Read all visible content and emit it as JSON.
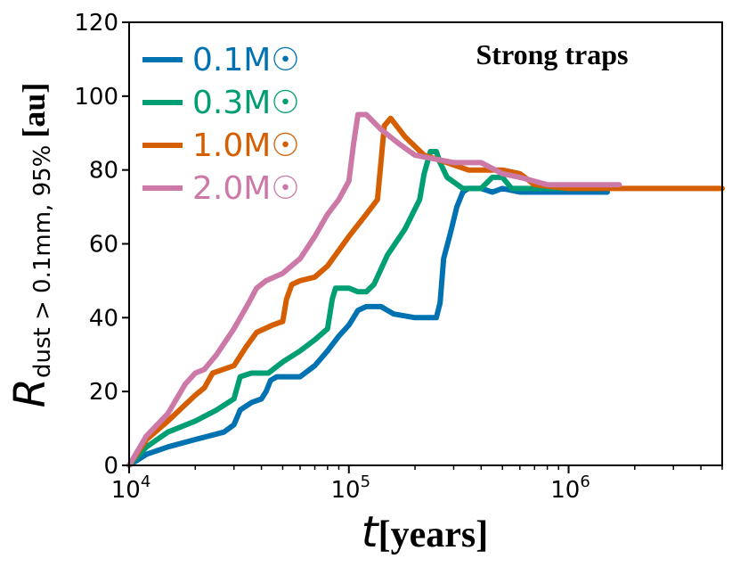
{
  "chart_data": {
    "type": "line",
    "annotation": "Strong traps",
    "xlabel": {
      "symbol": "t",
      "unit": "[years]"
    },
    "ylabel": {
      "symbol": "R",
      "subscript": "dust > 0.1mm, 95%",
      "unit": "[au]"
    },
    "xscale": "log",
    "xlim": [
      10000,
      5000000
    ],
    "ylim": [
      0,
      120
    ],
    "xticks": [
      {
        "base": "10",
        "exp": "4",
        "value": 10000
      },
      {
        "base": "10",
        "exp": "5",
        "value": 100000
      },
      {
        "base": "10",
        "exp": "6",
        "value": 1000000
      }
    ],
    "yticks": [
      "0",
      "20",
      "40",
      "60",
      "80",
      "100",
      "120"
    ],
    "legend_position": "top-left",
    "series": [
      {
        "name": "0.1M☉",
        "color": "#0072B2",
        "points": [
          [
            10000,
            0
          ],
          [
            12000,
            3
          ],
          [
            15000,
            5
          ],
          [
            20000,
            7
          ],
          [
            27000,
            9
          ],
          [
            30000,
            11
          ],
          [
            32000,
            15
          ],
          [
            36000,
            17
          ],
          [
            40000,
            18
          ],
          [
            42000,
            20
          ],
          [
            44000,
            23
          ],
          [
            47000,
            24
          ],
          [
            60000,
            24
          ],
          [
            70000,
            27
          ],
          [
            80000,
            31
          ],
          [
            90000,
            35
          ],
          [
            100000,
            38
          ],
          [
            105000,
            40
          ],
          [
            110000,
            42
          ],
          [
            120000,
            43
          ],
          [
            140000,
            43
          ],
          [
            160000,
            41
          ],
          [
            200000,
            40
          ],
          [
            250000,
            40
          ],
          [
            260000,
            44
          ],
          [
            270000,
            56
          ],
          [
            290000,
            63
          ],
          [
            310000,
            70
          ],
          [
            330000,
            74
          ],
          [
            350000,
            75
          ],
          [
            400000,
            75
          ],
          [
            450000,
            74
          ],
          [
            500000,
            75
          ],
          [
            600000,
            74
          ],
          [
            700000,
            74
          ],
          [
            1000000,
            74
          ],
          [
            1500000,
            74
          ]
        ]
      },
      {
        "name": "0.3M☉",
        "color": "#009E73",
        "points": [
          [
            10000,
            0
          ],
          [
            12000,
            5
          ],
          [
            15000,
            9
          ],
          [
            20000,
            12
          ],
          [
            25000,
            15
          ],
          [
            30000,
            18
          ],
          [
            32000,
            24
          ],
          [
            36000,
            25
          ],
          [
            43000,
            25
          ],
          [
            50000,
            28
          ],
          [
            60000,
            31
          ],
          [
            70000,
            34
          ],
          [
            80000,
            37
          ],
          [
            84000,
            45
          ],
          [
            87000,
            48
          ],
          [
            100000,
            48
          ],
          [
            110000,
            47
          ],
          [
            120000,
            47
          ],
          [
            130000,
            49
          ],
          [
            150000,
            57
          ],
          [
            180000,
            64
          ],
          [
            210000,
            72
          ],
          [
            220000,
            79
          ],
          [
            235000,
            85
          ],
          [
            250000,
            85
          ],
          [
            260000,
            82
          ],
          [
            280000,
            78
          ],
          [
            330000,
            75
          ],
          [
            400000,
            75
          ],
          [
            450000,
            78
          ],
          [
            500000,
            78
          ],
          [
            550000,
            75
          ],
          [
            1000000,
            75
          ],
          [
            1200000,
            75
          ]
        ]
      },
      {
        "name": "1.0M☉",
        "color": "#D55E00",
        "points": [
          [
            10000,
            0
          ],
          [
            12000,
            7
          ],
          [
            15000,
            12
          ],
          [
            20000,
            19
          ],
          [
            22000,
            21
          ],
          [
            24000,
            25
          ],
          [
            30000,
            27
          ],
          [
            34000,
            32
          ],
          [
            38000,
            36
          ],
          [
            45000,
            38
          ],
          [
            50000,
            39
          ],
          [
            52000,
            45
          ],
          [
            55000,
            49
          ],
          [
            60000,
            50
          ],
          [
            70000,
            51
          ],
          [
            80000,
            54
          ],
          [
            100000,
            62
          ],
          [
            120000,
            68
          ],
          [
            135000,
            72
          ],
          [
            145000,
            92
          ],
          [
            155000,
            94
          ],
          [
            180000,
            89
          ],
          [
            220000,
            84
          ],
          [
            280000,
            82
          ],
          [
            350000,
            80
          ],
          [
            420000,
            80
          ],
          [
            500000,
            80
          ],
          [
            600000,
            79
          ],
          [
            700000,
            76
          ],
          [
            1000000,
            75
          ],
          [
            2000000,
            75
          ],
          [
            5000000,
            75
          ]
        ]
      },
      {
        "name": "2.0M☉",
        "color": "#CC79A7",
        "points": [
          [
            10000,
            0
          ],
          [
            12000,
            8
          ],
          [
            15000,
            14
          ],
          [
            18000,
            22
          ],
          [
            20000,
            25
          ],
          [
            22000,
            26
          ],
          [
            25000,
            30
          ],
          [
            30000,
            37
          ],
          [
            35000,
            44
          ],
          [
            38000,
            48
          ],
          [
            42000,
            50
          ],
          [
            50000,
            52
          ],
          [
            60000,
            56
          ],
          [
            70000,
            62
          ],
          [
            80000,
            68
          ],
          [
            90000,
            72
          ],
          [
            100000,
            77
          ],
          [
            105000,
            87
          ],
          [
            110000,
            95
          ],
          [
            120000,
            95
          ],
          [
            140000,
            91
          ],
          [
            170000,
            87
          ],
          [
            200000,
            84
          ],
          [
            300000,
            82
          ],
          [
            400000,
            82
          ],
          [
            500000,
            79
          ],
          [
            600000,
            78
          ],
          [
            800000,
            76
          ],
          [
            1000000,
            76
          ],
          [
            1700000,
            76
          ]
        ]
      }
    ]
  }
}
